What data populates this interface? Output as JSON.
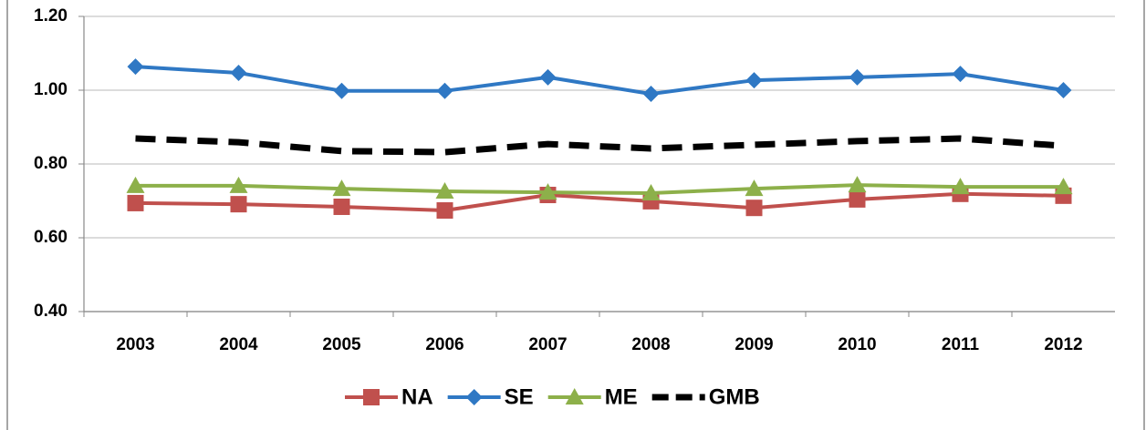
{
  "chart_data": {
    "type": "line",
    "categories": [
      "2003",
      "2004",
      "2005",
      "2006",
      "2007",
      "2008",
      "2009",
      "2010",
      "2011",
      "2012"
    ],
    "series": [
      {
        "name": "NA",
        "color": "#c0504d",
        "marker": "square",
        "dashed": false,
        "values": [
          0.694,
          0.691,
          0.684,
          0.674,
          0.716,
          0.699,
          0.681,
          0.704,
          0.719,
          0.714
        ]
      },
      {
        "name": "SE",
        "color": "#2f78c4",
        "marker": "diamond",
        "dashed": false,
        "values": [
          1.064,
          1.047,
          0.998,
          0.998,
          1.035,
          0.99,
          1.027,
          1.035,
          1.044,
          1.0
        ]
      },
      {
        "name": "ME",
        "color": "#8db04a",
        "marker": "triangle",
        "dashed": false,
        "values": [
          0.741,
          0.741,
          0.733,
          0.726,
          0.723,
          0.721,
          0.733,
          0.743,
          0.738,
          0.738
        ]
      },
      {
        "name": "GMB",
        "color": "#000000",
        "marker": "none",
        "dashed": true,
        "values": [
          0.869,
          0.859,
          0.835,
          0.832,
          0.854,
          0.842,
          0.852,
          0.862,
          0.869,
          0.849
        ]
      }
    ],
    "ylim": [
      0.4,
      1.2
    ],
    "yticks": [
      {
        "value": 0.4,
        "label": "0.40"
      },
      {
        "value": 0.6,
        "label": "0.60"
      },
      {
        "value": 0.8,
        "label": "0.80"
      },
      {
        "value": 1.0,
        "label": "1.00"
      },
      {
        "value": 1.2,
        "label": "1.20"
      }
    ],
    "grid": true
  }
}
